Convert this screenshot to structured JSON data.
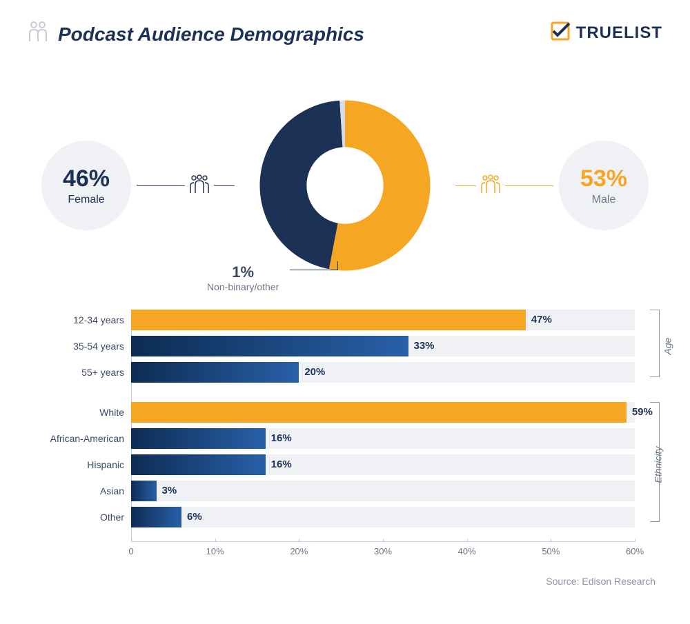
{
  "title": "Podcast Audience Demographics",
  "logo_text": "TRUELIST",
  "colors": {
    "navy": "#1c3156",
    "orange": "#f5a623",
    "light_bg": "#f0f1f4",
    "grey": "#c7cbd4",
    "text_muted": "#6b7688",
    "nonbinary_slice": "#d9dce3",
    "bar_blue_gradient_from": "#0d2c54",
    "bar_blue_gradient_to": "#2860a8"
  },
  "donut": {
    "type": "donut",
    "inner_radius_pct": 45,
    "slices": [
      {
        "label": "Male",
        "value": 53,
        "color": "#f5a623"
      },
      {
        "label": "Female",
        "value": 46,
        "color": "#1c3156"
      },
      {
        "label": "Non-binary/other",
        "value": 1,
        "color": "#d9dce3"
      }
    ],
    "callouts": {
      "female": {
        "pct": "46%",
        "label": "Female",
        "pct_color": "#1c3156"
      },
      "male": {
        "pct": "53%",
        "label": "Male",
        "pct_color": "#f5a623"
      },
      "nonbinary": {
        "pct": "1%",
        "label": "Non-binary/other"
      }
    }
  },
  "bar_charts": {
    "type": "bar",
    "xlim": [
      0,
      60
    ],
    "xtick_step": 10,
    "xtick_labels": [
      "0",
      "10%",
      "20%",
      "30%",
      "40%",
      "50%",
      "60%"
    ],
    "track_bg": "#f0f1f4",
    "value_fontsize": 15,
    "label_fontsize": 14,
    "groups": [
      {
        "name": "Age",
        "rows": [
          {
            "label": "12-34 years",
            "value": 47,
            "display": "47%",
            "fill": "#f5a623"
          },
          {
            "label": "35-54 years",
            "value": 33,
            "display": "33%",
            "fill": "gradient"
          },
          {
            "label": "55+ years",
            "value": 20,
            "display": "20%",
            "fill": "gradient"
          }
        ]
      },
      {
        "name": "Ethnicity",
        "rows": [
          {
            "label": "White",
            "value": 59,
            "display": "59%",
            "fill": "#f5a623"
          },
          {
            "label": "African-American",
            "value": 16,
            "display": "16%",
            "fill": "gradient"
          },
          {
            "label": "Hispanic",
            "value": 16,
            "display": "16%",
            "fill": "gradient"
          },
          {
            "label": "Asian",
            "value": 3,
            "display": "3%",
            "fill": "gradient"
          },
          {
            "label": "Other",
            "value": 6,
            "display": "6%",
            "fill": "gradient"
          }
        ]
      }
    ]
  },
  "source": "Source: Edison Research"
}
